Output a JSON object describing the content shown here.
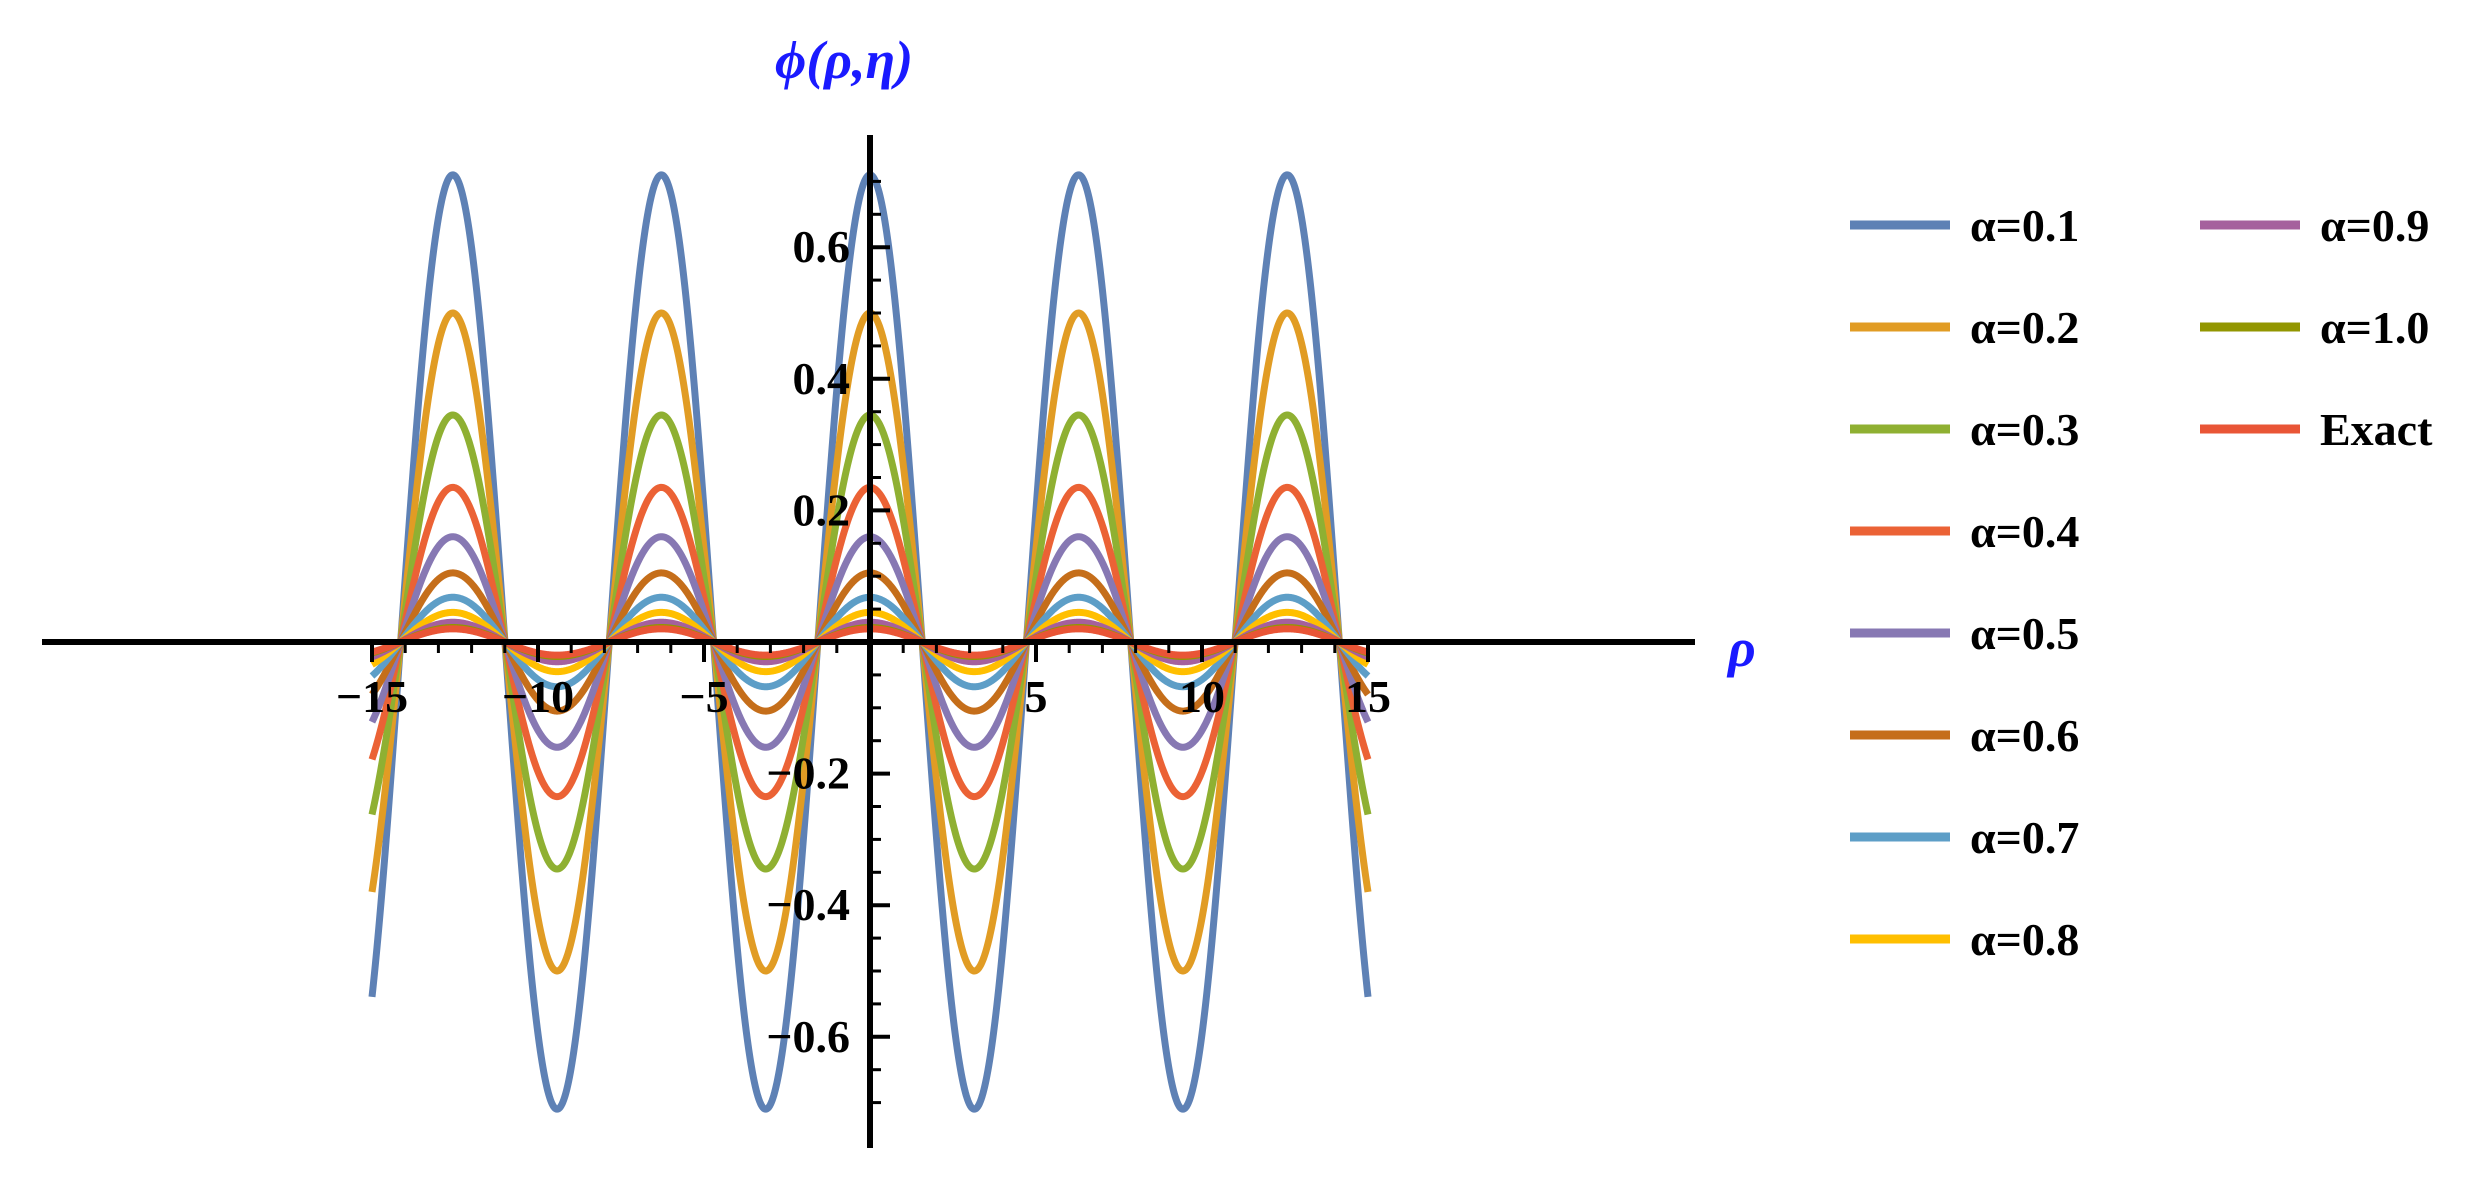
{
  "chart_data": {
    "type": "line",
    "xlabel": "ρ",
    "ylabel": "ϕ(ρ,η)",
    "xlim": [
      -15,
      15
    ],
    "ylim": [
      -0.75,
      0.75
    ],
    "x_ticks": [
      -15,
      -10,
      -5,
      5,
      10,
      15
    ],
    "x_tick_labels": [
      "−15",
      "−10",
      "−5",
      "5",
      "10",
      "15"
    ],
    "y_ticks": [
      -0.6,
      -0.4,
      -0.2,
      0.2,
      0.4,
      0.6
    ],
    "y_tick_labels": [
      "−0.6",
      "−0.4",
      "−0.2",
      "0.2",
      "0.4",
      "0.6"
    ],
    "function": "amplitude * cos(rho)",
    "x_range": [
      -15,
      15
    ],
    "grid": false,
    "legend_position": "right",
    "series": [
      {
        "name": "α=0.1",
        "amplitude": 0.71,
        "color": "#5E81B5"
      },
      {
        "name": "α=0.2",
        "amplitude": 0.5,
        "color": "#E19C24"
      },
      {
        "name": "α=0.3",
        "amplitude": 0.345,
        "color": "#8FB032"
      },
      {
        "name": "α=0.4",
        "amplitude": 0.235,
        "color": "#EB6235"
      },
      {
        "name": "α=0.5",
        "amplitude": 0.16,
        "color": "#8778B3"
      },
      {
        "name": "α=0.6",
        "amplitude": 0.105,
        "color": "#C56E1A"
      },
      {
        "name": "α=0.7",
        "amplitude": 0.068,
        "color": "#5D9EC7"
      },
      {
        "name": "α=0.8",
        "amplitude": 0.045,
        "color": "#FFBF00"
      },
      {
        "name": "α=0.9",
        "amplitude": 0.03,
        "color": "#A5609D"
      },
      {
        "name": "α=1.0",
        "amplitude": 0.022,
        "color": "#929600"
      },
      {
        "name": "Exact",
        "amplitude": 0.02,
        "color": "#E95536"
      }
    ]
  }
}
